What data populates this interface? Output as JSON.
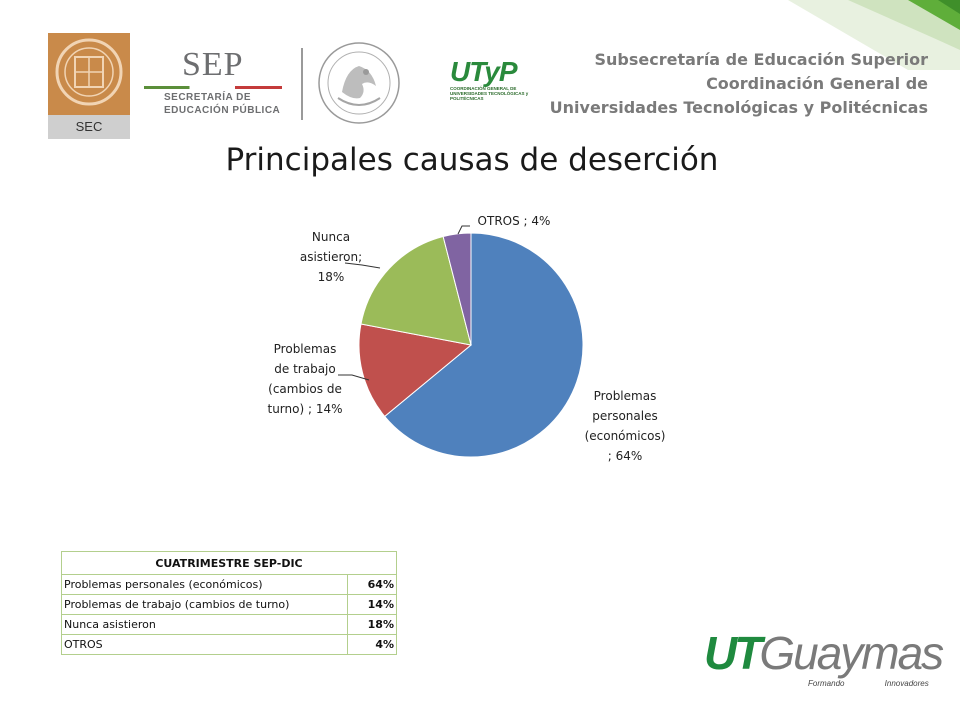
{
  "header": {
    "sec_label": "SEC",
    "sep_title": "SEP",
    "sep_line1": "SECRETARÍA DE",
    "sep_line2": "EDUCACIÓN PÚBLICA",
    "utp_title": "UTyP",
    "utp_sub": "COORDINACIÓN GENERAL DE UNIVERSIDADES TECNOLÓGICAS y POLITÉCNICAS",
    "lines": [
      "Subsecretaría de Educación Superior",
      "Coordinación General de",
      "Universidades Tecnológicas y Politécnicas"
    ]
  },
  "title": "Principales causas de deserción",
  "chart_data": {
    "type": "pie",
    "slices": [
      {
        "label_lines": [
          "Problemas",
          "personales",
          "(económicos)",
          "; 64%"
        ],
        "category": "Problemas personales (económicos)",
        "value": 64,
        "color": "#4f81bd"
      },
      {
        "label_lines": [
          "Problemas",
          "de trabajo",
          "(cambios de",
          "turno)  ; 14%"
        ],
        "category": "Problemas de trabajo (cambios de turno)",
        "value": 14,
        "color": "#c0504d"
      },
      {
        "label_lines": [
          "Nunca",
          "asistieron;",
          "18%"
        ],
        "category": "Nunca asistieron",
        "value": 18,
        "color": "#9bbb59"
      },
      {
        "label_lines": [
          "OTROS ; 4%"
        ],
        "category": "OTROS",
        "value": 4,
        "color": "#8064a2"
      }
    ]
  },
  "table": {
    "header": "CUATRIMESTRE SEP-DIC",
    "rows": [
      {
        "label": "Problemas personales (económicos)",
        "value": "64%"
      },
      {
        "label": "Problemas de trabajo (cambios de turno)",
        "value": "14%"
      },
      {
        "label": "Nunca asistieron",
        "value": "18%"
      },
      {
        "label": "OTROS",
        "value": "4%"
      }
    ]
  },
  "footer_logo": {
    "part1": "UT",
    "part2": "Guaymas",
    "tagline": "Formando Innovadores"
  }
}
